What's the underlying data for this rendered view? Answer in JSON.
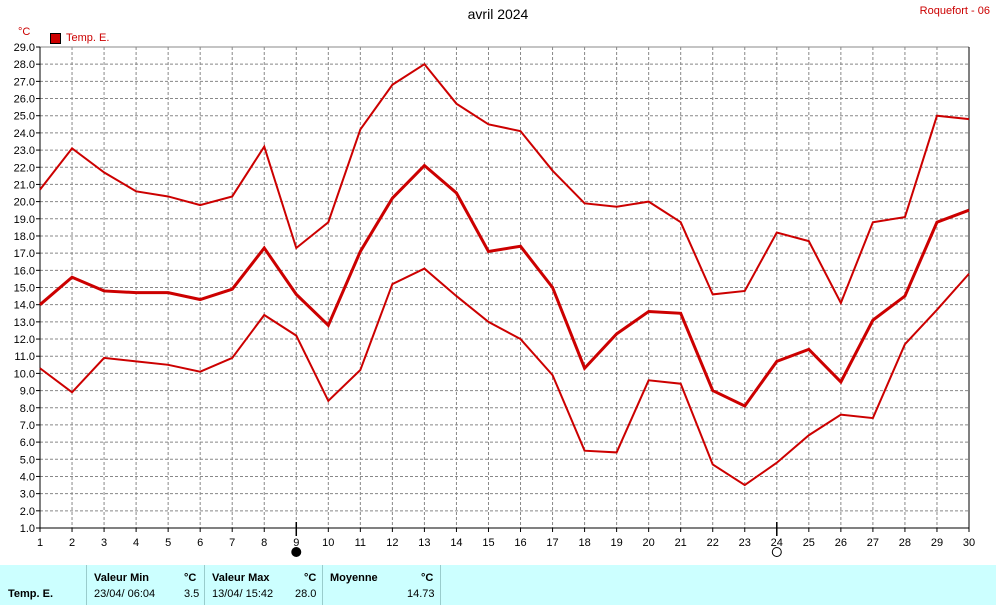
{
  "title": "avril 2024",
  "station": "Roquefort - 06",
  "unit": "°C",
  "legend": "Temp. E.",
  "colors": {
    "series": "#cc0000",
    "table_bg": "#ccffff",
    "grid": "#888888"
  },
  "moon_icons": [
    "full-moon-icon",
    "new-moon-icon"
  ],
  "chart_data": {
    "type": "line",
    "title": "avril 2024",
    "ylabel": "°C",
    "ylim": [
      1.0,
      29.0
    ],
    "xlim": [
      1,
      30
    ],
    "ytick_step": 1.0,
    "grid": true,
    "legend_position": "top-left",
    "x": [
      1,
      2,
      3,
      4,
      5,
      6,
      7,
      8,
      9,
      10,
      11,
      12,
      13,
      14,
      15,
      16,
      17,
      18,
      19,
      20,
      21,
      22,
      23,
      24,
      25,
      26,
      27,
      28,
      29,
      30
    ],
    "moon_phases": [
      {
        "day": 9,
        "phase": "full"
      },
      {
        "day": 24,
        "phase": "new"
      }
    ],
    "series": [
      {
        "name": "Temp. E.",
        "role": "max",
        "values": [
          20.7,
          23.1,
          21.7,
          20.6,
          20.3,
          19.8,
          20.3,
          23.2,
          17.3,
          18.8,
          24.2,
          26.8,
          28.0,
          25.7,
          24.5,
          24.1,
          21.8,
          19.9,
          19.7,
          20.0,
          18.8,
          14.6,
          14.8,
          18.2,
          17.7,
          14.1,
          18.8,
          19.1,
          25.0,
          24.8
        ]
      },
      {
        "name": "Temp. E.",
        "role": "mean",
        "values": [
          14.0,
          15.6,
          14.8,
          14.7,
          14.7,
          14.3,
          14.9,
          17.3,
          14.6,
          12.8,
          17.1,
          20.2,
          22.1,
          20.5,
          17.1,
          17.4,
          15.0,
          10.3,
          12.3,
          13.6,
          13.5,
          9.0,
          8.1,
          10.7,
          11.4,
          9.5,
          13.1,
          14.5,
          18.8,
          19.5
        ]
      },
      {
        "name": "Temp. E.",
        "role": "min",
        "values": [
          10.3,
          8.9,
          10.9,
          10.7,
          10.5,
          10.1,
          10.9,
          13.4,
          12.2,
          8.4,
          10.2,
          15.2,
          16.1,
          14.5,
          13.0,
          12.0,
          9.9,
          5.5,
          5.4,
          9.6,
          9.4,
          4.7,
          3.5,
          4.8,
          6.4,
          7.6,
          7.4,
          11.7,
          13.7,
          15.8
        ]
      }
    ]
  },
  "table": {
    "row_label": "Temp. E.",
    "min_header": "Valeur Min",
    "min_unit": "°C",
    "min_date": "23/04/  06:04",
    "min_value": "3.5",
    "max_header": "Valeur Max",
    "max_unit": "°C",
    "max_date": "13/04/  15:42",
    "max_value": "28.0",
    "mean_header": "Moyenne",
    "mean_unit": "°C",
    "mean_value": "14.73"
  }
}
